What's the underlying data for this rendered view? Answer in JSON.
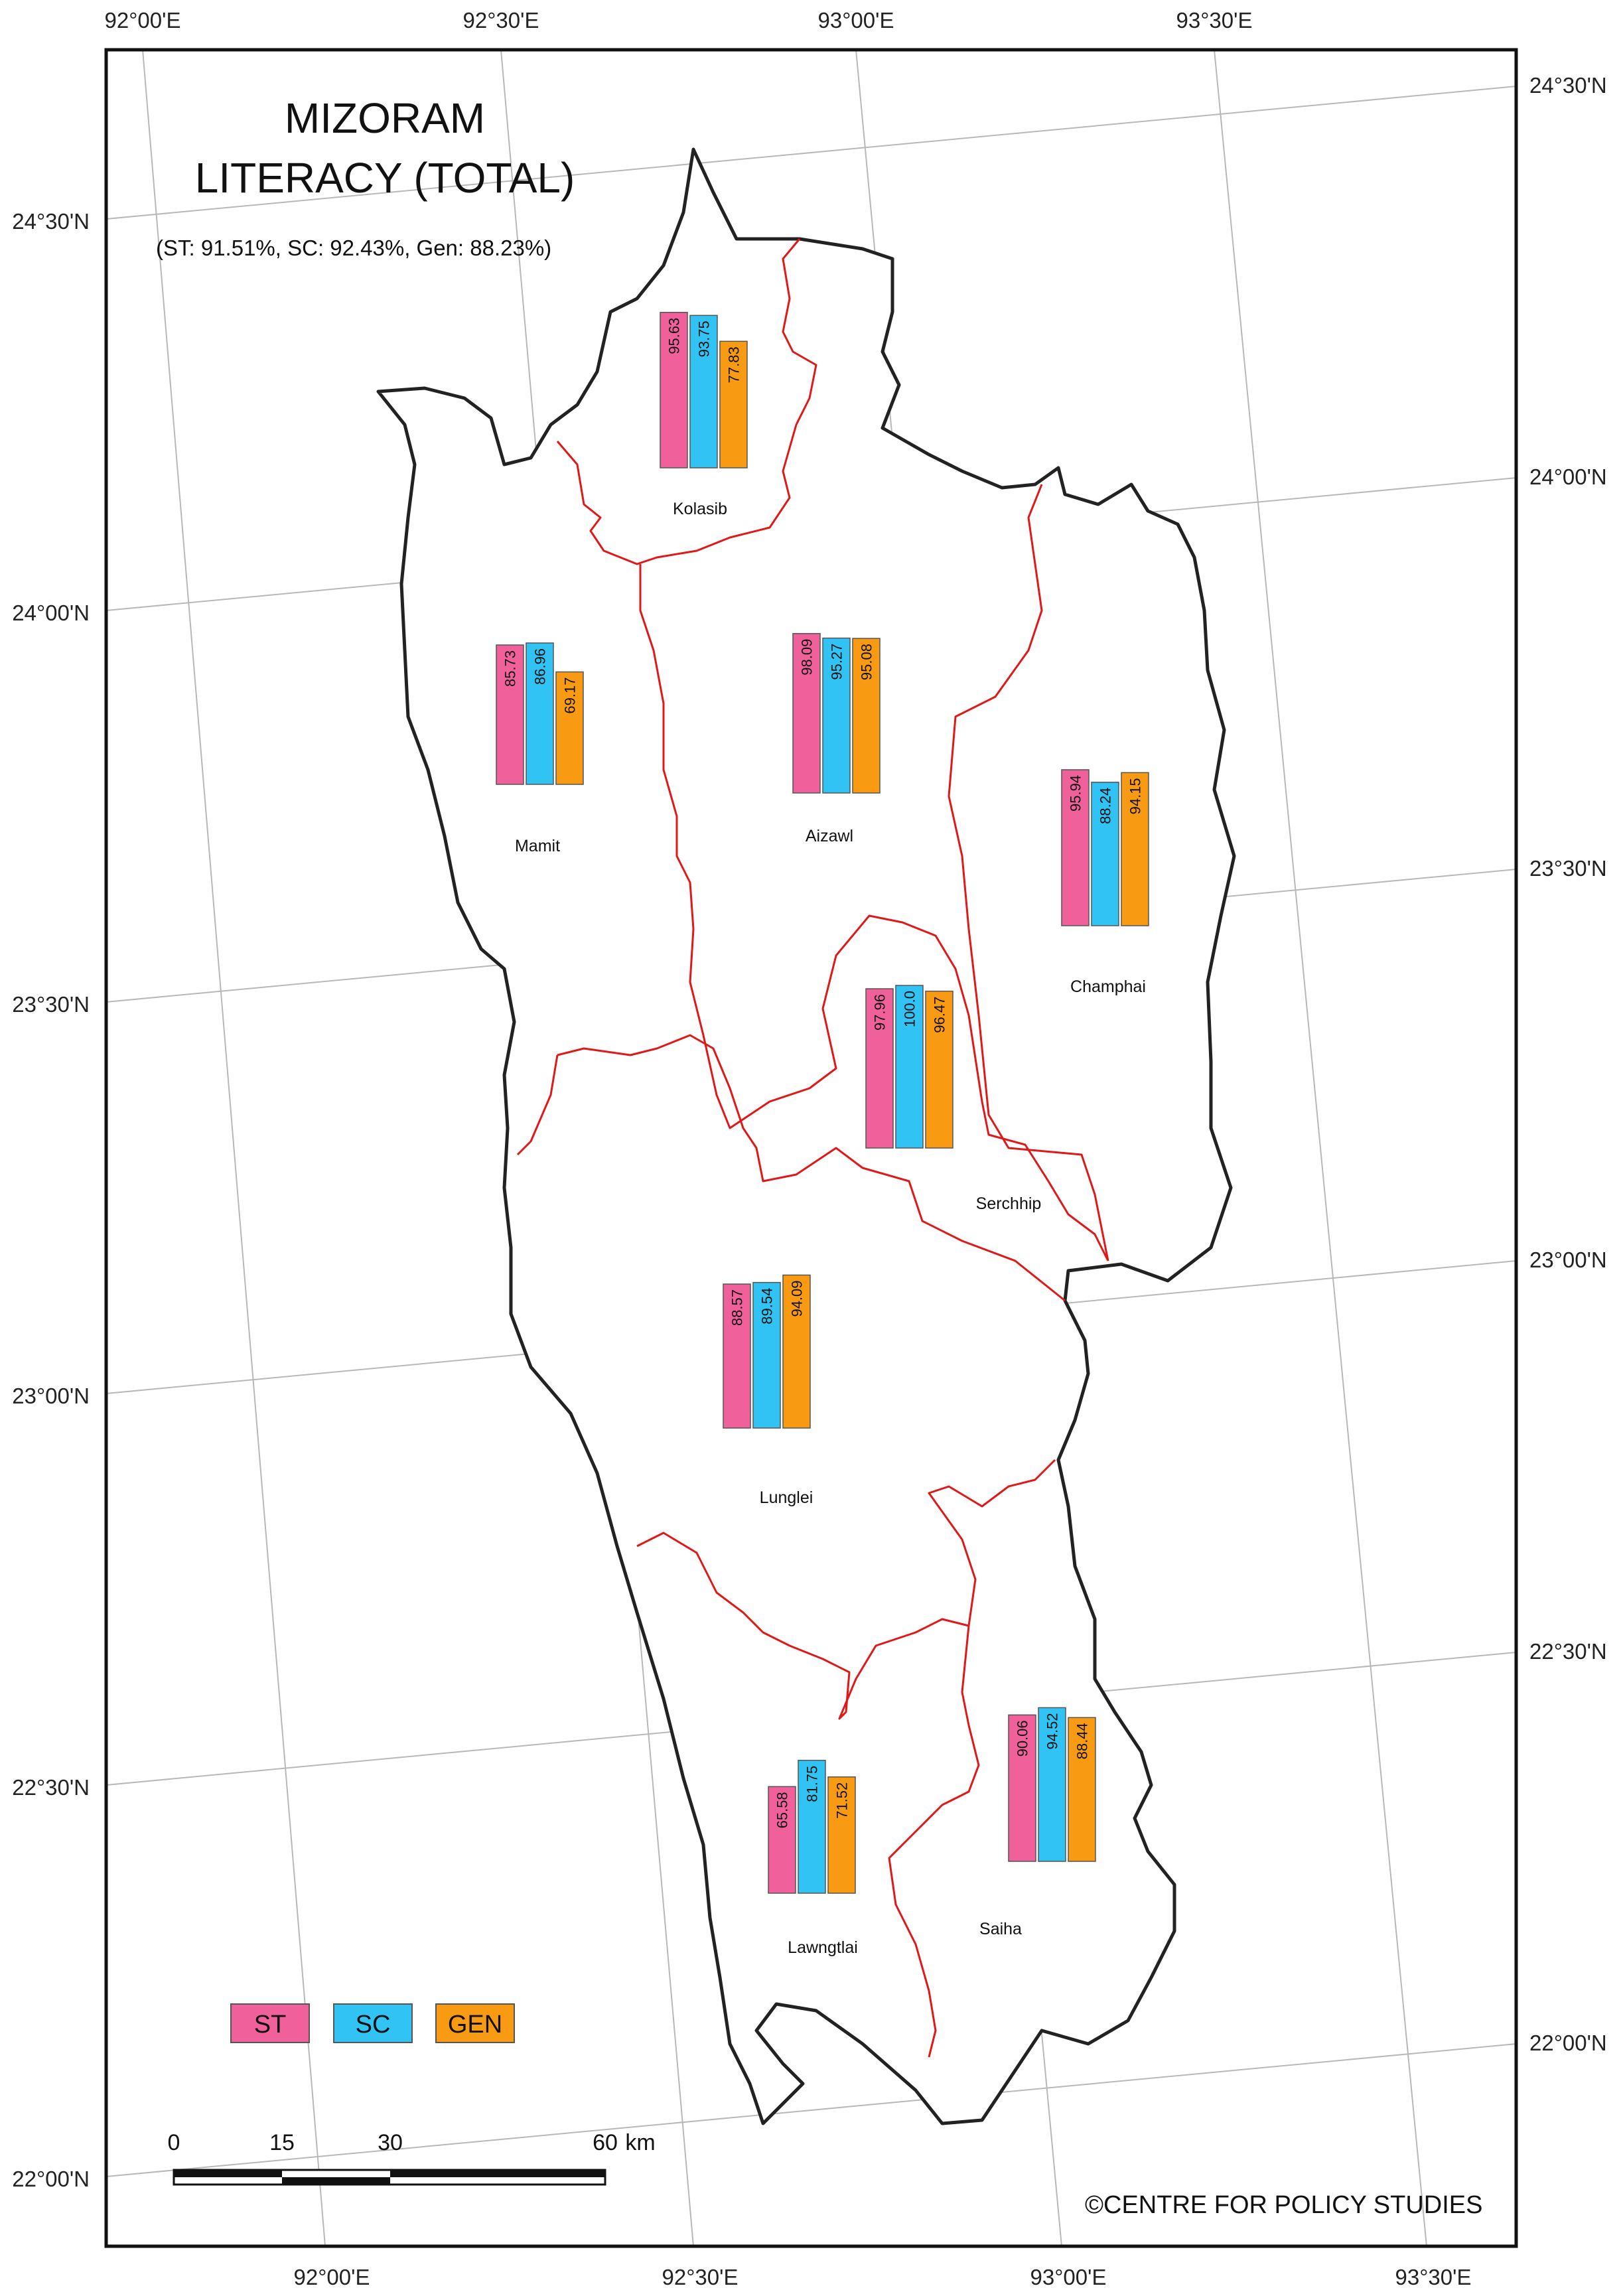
{
  "title_line1": "MIZORAM",
  "title_line2": "LITERACY (TOTAL)",
  "subtitle": "(ST: 91.51%, SC: 92.43%, Gen: 88.23%)",
  "credit": "©CENTRE FOR POLICY STUDIES",
  "colors": {
    "ST": "#f0609a",
    "SC": "#30c3f3",
    "GEN": "#f99b12",
    "boundary": "#222222",
    "district_line": "#e01818",
    "graticule": "#b8b8b8"
  },
  "legend": [
    {
      "key": "ST",
      "label": "ST"
    },
    {
      "key": "SC",
      "label": "SC"
    },
    {
      "key": "GEN",
      "label": "GEN"
    }
  ],
  "grid_labels": {
    "top": [
      "92°00'E",
      "92°30'E",
      "93°00'E",
      "93°30'E"
    ],
    "bottom": [
      "92°00'E",
      "92°30'E",
      "93°00'E",
      "93°30'E"
    ],
    "left": [
      "24°30'N",
      "24°00'N",
      "23°30'N",
      "23°00'N",
      "22°30'N",
      "22°00'N"
    ],
    "right": [
      "24°30'N",
      "24°00'N",
      "23°30'N",
      "23°00'N",
      "22°30'N",
      "22°00'N"
    ]
  },
  "scale_bar": {
    "labels": [
      "0",
      "15",
      "30",
      "60"
    ],
    "unit": "km"
  },
  "districts": [
    {
      "name": "Kolasib",
      "ST": 95.63,
      "SC": 93.75,
      "GEN": 77.83,
      "labels": [
        "95.63",
        "93.75",
        "77.83"
      ]
    },
    {
      "name": "Mamit",
      "ST": 85.73,
      "SC": 86.96,
      "GEN": 69.17,
      "labels": [
        "85.73",
        "86.96",
        "69.17"
      ]
    },
    {
      "name": "Aizawl",
      "ST": 98.09,
      "SC": 95.27,
      "GEN": 95.08,
      "labels": [
        "98.09",
        "95.27",
        "95.08"
      ]
    },
    {
      "name": "Champhai",
      "ST": 95.94,
      "SC": 88.24,
      "GEN": 94.15,
      "labels": [
        "95.94",
        "88.24",
        "94.15"
      ]
    },
    {
      "name": "Serchhip",
      "ST": 97.96,
      "SC": 100.0,
      "GEN": 96.47,
      "labels": [
        "97.96",
        "100.0",
        "96.47"
      ]
    },
    {
      "name": "Lunglei",
      "ST": 88.57,
      "SC": 89.54,
      "GEN": 94.09,
      "labels": [
        "88.57",
        "89.54",
        "94.09"
      ]
    },
    {
      "name": "Lawngtlai",
      "ST": 65.58,
      "SC": 81.75,
      "GEN": 71.52,
      "labels": [
        "65.58",
        "81.75",
        "71.52"
      ]
    },
    {
      "name": "Saiha",
      "ST": 90.06,
      "SC": 94.52,
      "GEN": 88.44,
      "labels": [
        "90.06",
        "94.52",
        "88.44"
      ]
    }
  ]
}
